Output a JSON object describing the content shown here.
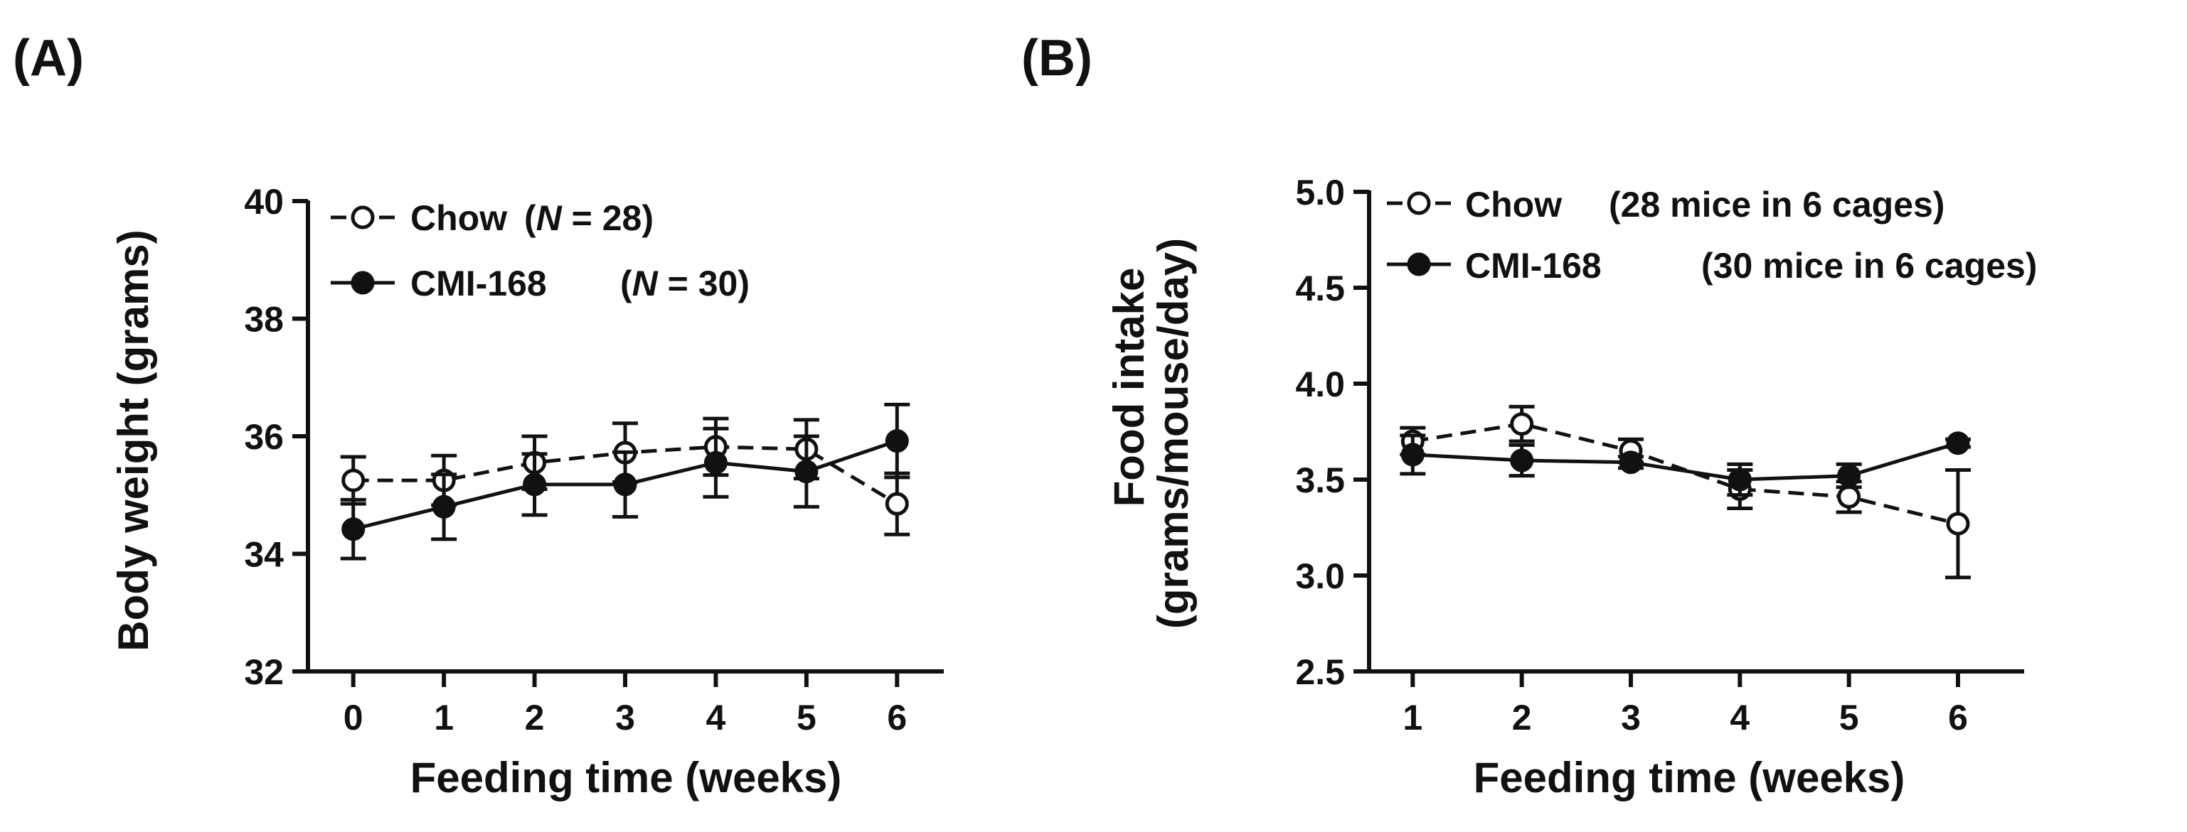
{
  "chart_data": [
    {
      "panel_label": "(A)",
      "type": "line",
      "title": "",
      "xlabel": "Feeding time (weeks)",
      "ylabel": "Body weight (grams)",
      "xlim": [
        -0.5,
        6.5
      ],
      "ylim": [
        32,
        40
      ],
      "xticks": [
        0,
        1,
        2,
        3,
        4,
        5,
        6
      ],
      "yticks": [
        32,
        34,
        36,
        38,
        40
      ],
      "legend_position": "top-left",
      "series": [
        {
          "name": "Chow",
          "legend_note": "(N = 28)",
          "marker": "open-circle",
          "line_style": "dashed",
          "x": [
            0,
            1,
            2,
            3,
            4,
            5,
            6
          ],
          "y": [
            35.25,
            35.25,
            35.55,
            35.72,
            35.82,
            35.78,
            34.85
          ],
          "err": [
            0.4,
            0.42,
            0.45,
            0.5,
            0.48,
            0.5,
            0.52
          ]
        },
        {
          "name": "CMI-168",
          "legend_note": "(N = 30)",
          "marker": "filled-circle",
          "line_style": "solid",
          "x": [
            0,
            1,
            2,
            3,
            4,
            5,
            6
          ],
          "y": [
            34.42,
            34.8,
            35.18,
            35.18,
            35.55,
            35.4,
            35.92
          ],
          "err": [
            0.5,
            0.55,
            0.52,
            0.55,
            0.58,
            0.6,
            0.62
          ]
        }
      ]
    },
    {
      "panel_label": "(B)",
      "type": "line",
      "title": "",
      "xlabel": "Feeding time (weeks)",
      "ylabel_line1": "Food intake",
      "ylabel_line2": "(grams/mouse/day)",
      "xlim": [
        0.6,
        6.6
      ],
      "ylim": [
        2.5,
        5.0
      ],
      "xticks": [
        1,
        2,
        3,
        4,
        5,
        6
      ],
      "yticks": [
        2.5,
        3.0,
        3.5,
        4.0,
        4.5,
        5.0
      ],
      "ytick_labels": [
        "2.5",
        "3.0",
        "3.5",
        "4.0",
        "4.5",
        "5.0"
      ],
      "legend_position": "top-left",
      "series": [
        {
          "name": "Chow",
          "legend_note": "(28 mice in 6 cages)",
          "marker": "open-circle",
          "line_style": "dashed",
          "x": [
            1,
            2,
            3,
            4,
            5,
            6
          ],
          "y": [
            3.7,
            3.79,
            3.65,
            3.45,
            3.41,
            3.27
          ],
          "err": [
            0.07,
            0.09,
            0.06,
            0.1,
            0.08,
            0.28
          ]
        },
        {
          "name": "CMI-168",
          "legend_note": "(30 mice in 6 cages)",
          "marker": "filled-circle",
          "line_style": "solid",
          "x": [
            1,
            2,
            3,
            4,
            5,
            6
          ],
          "y": [
            3.63,
            3.6,
            3.59,
            3.5,
            3.52,
            3.69
          ],
          "err": [
            0.1,
            0.08,
            0.03,
            0.08,
            0.06,
            0.02
          ]
        }
      ]
    }
  ]
}
